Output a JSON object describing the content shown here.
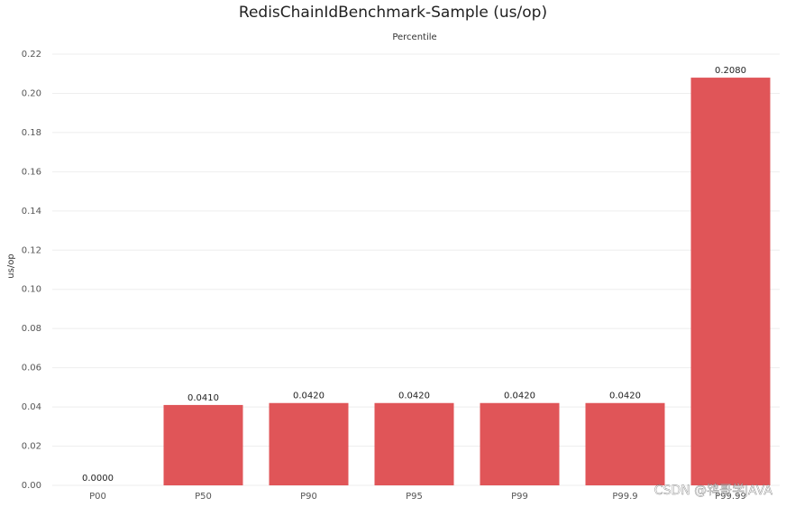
{
  "chart_data": {
    "type": "bar",
    "title": "RedisChainIdBenchmark-Sample (us/op)",
    "subtitle": "Percentile",
    "y_label": "us/op",
    "categories": [
      "P00",
      "P50",
      "P90",
      "P95",
      "P99",
      "P99.9",
      "P99.99"
    ],
    "values": [
      0,
      0.041,
      0.042,
      0.042,
      0.042,
      0.042,
      0.208
    ],
    "value_labels": [
      "0.0000",
      "0.0410",
      "0.0420",
      "0.0420",
      "0.0420",
      "0.0420",
      "0.2080"
    ],
    "color": "#e05558",
    "ylim": [
      0,
      0.22
    ],
    "yticks": [
      {
        "value": 0,
        "label": "0.00"
      },
      {
        "value": 0.02,
        "label": "0.02"
      },
      {
        "value": 0.04,
        "label": "0.04"
      },
      {
        "value": 0.06,
        "label": "0.06"
      },
      {
        "value": 0.08,
        "label": "0.08"
      },
      {
        "value": 0.1,
        "label": "0.10"
      },
      {
        "value": 0.12,
        "label": "0.12"
      },
      {
        "value": 0.14,
        "label": "0.14"
      },
      {
        "value": 0.16,
        "label": "0.16"
      },
      {
        "value": 0.18,
        "label": "0.18"
      },
      {
        "value": 0.2,
        "label": "0.20"
      },
      {
        "value": 0.22,
        "label": "0.22"
      }
    ],
    "grid": true,
    "watermark": "CSDN @鸨哥学JAVA"
  }
}
